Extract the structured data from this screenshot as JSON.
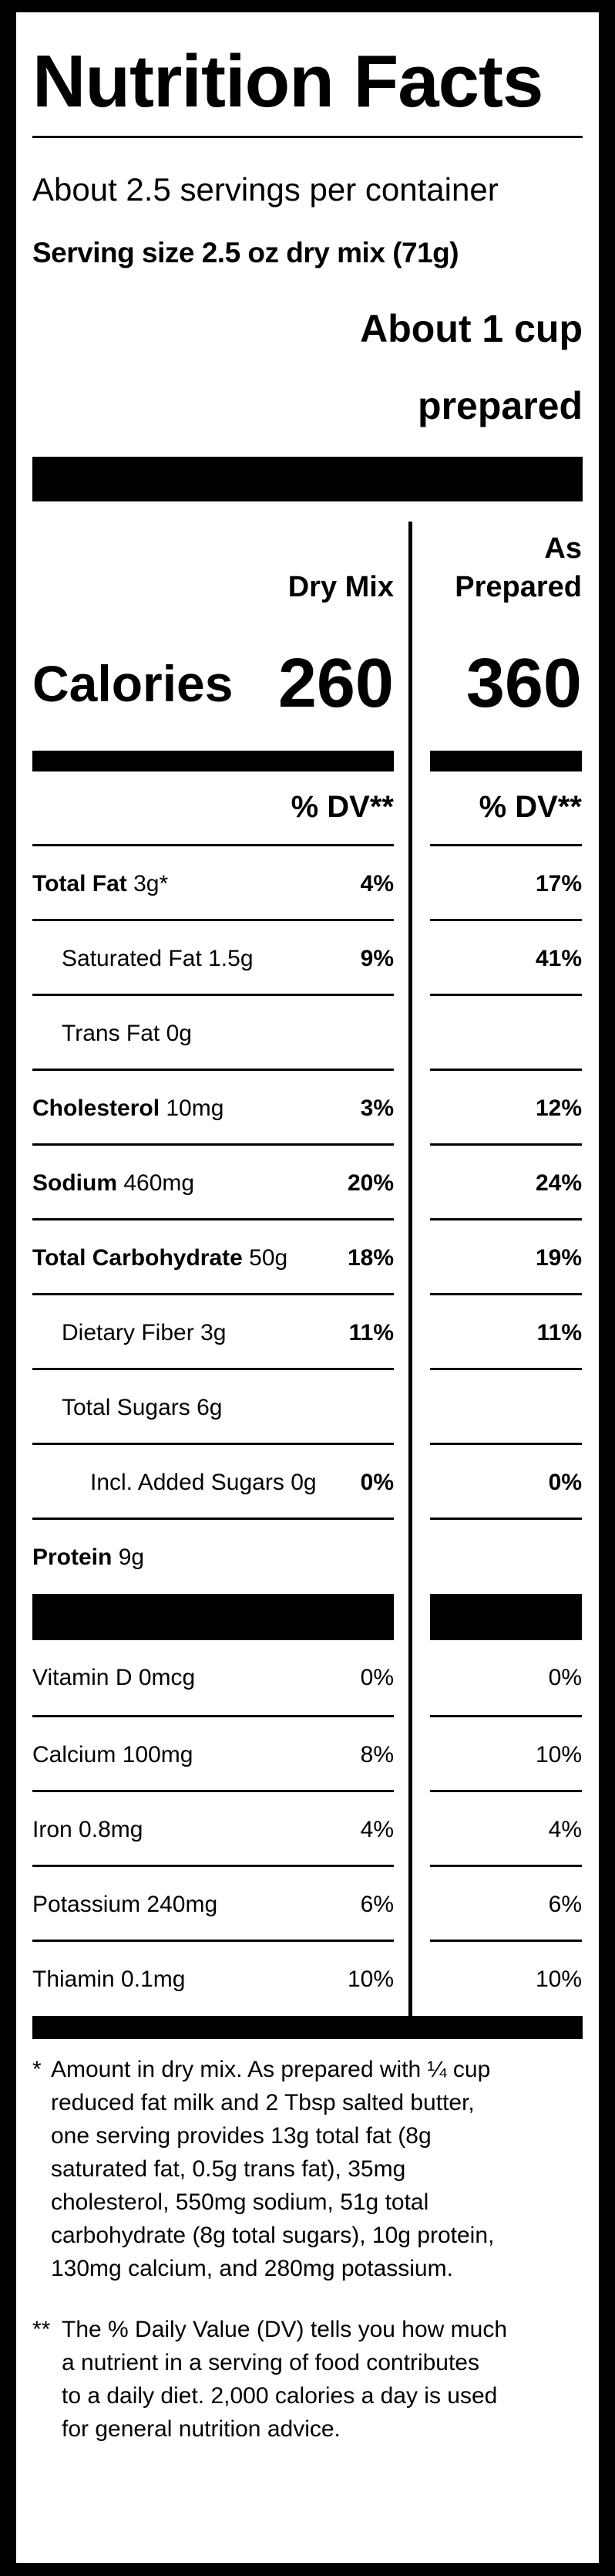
{
  "title": "Nutrition Facts",
  "servings_per_container": "About 2.5 servings per container",
  "serving_size": "Serving size  2.5 oz dry mix (71g)",
  "serving_size_prepared_line1": "About 1 cup",
  "serving_size_prepared_line2": "prepared",
  "columns": {
    "dry_mix": "Dry Mix",
    "as_prepared_line1": "As",
    "as_prepared_line2": "Prepared"
  },
  "calories": {
    "label": "Calories",
    "dry_mix": "260",
    "as_prepared": "360"
  },
  "dv_header": "% DV**",
  "nutrients": [
    {
      "name": "Total Fat",
      "amount": "3g*",
      "dv_dry": "4%",
      "dv_prepared": "17%",
      "bold": true,
      "indent": 0
    },
    {
      "name": "Saturated Fat",
      "amount": "1.5g",
      "dv_dry": "9%",
      "dv_prepared": "41%",
      "bold": false,
      "indent": 1
    },
    {
      "name": "Trans Fat",
      "amount": "0g",
      "dv_dry": "",
      "dv_prepared": "",
      "bold": false,
      "indent": 1
    },
    {
      "name": "Cholesterol",
      "amount": "10mg",
      "dv_dry": "3%",
      "dv_prepared": "12%",
      "bold": true,
      "indent": 0
    },
    {
      "name": "Sodium",
      "amount": "460mg",
      "dv_dry": "20%",
      "dv_prepared": "24%",
      "bold": true,
      "indent": 0
    },
    {
      "name": "Total Carbohydrate",
      "amount": "50g",
      "dv_dry": "18%",
      "dv_prepared": "19%",
      "bold": true,
      "indent": 0
    },
    {
      "name": "Dietary Fiber",
      "amount": "3g",
      "dv_dry": "11%",
      "dv_prepared": "11%",
      "bold": false,
      "indent": 1
    },
    {
      "name": "Total Sugars",
      "amount": "6g",
      "dv_dry": "",
      "dv_prepared": "",
      "bold": false,
      "indent": 1
    },
    {
      "name": "Incl. Added Sugars",
      "amount": "0g",
      "dv_dry": "0%",
      "dv_prepared": "0%",
      "bold": false,
      "indent": 2
    },
    {
      "name": "Protein",
      "amount": "9g",
      "dv_dry": "",
      "dv_prepared": "",
      "bold": true,
      "indent": 0
    }
  ],
  "vitamins": [
    {
      "name": "Vitamin D",
      "amount": "0mcg",
      "dv_dry": "0%",
      "dv_prepared": "0%"
    },
    {
      "name": "Calcium",
      "amount": "100mg",
      "dv_dry": "8%",
      "dv_prepared": "10%"
    },
    {
      "name": "Iron",
      "amount": "0.8mg",
      "dv_dry": "4%",
      "dv_prepared": "4%"
    },
    {
      "name": "Potassium",
      "amount": "240mg",
      "dv_dry": "6%",
      "dv_prepared": "6%"
    },
    {
      "name": "Thiamin",
      "amount": "0.1mg",
      "dv_dry": "10%",
      "dv_prepared": "10%"
    }
  ],
  "footnotes": [
    {
      "mark": "*",
      "lines": [
        "Amount in dry mix. As prepared with ¼ cup",
        "reduced fat milk and 2 Tbsp salted butter,",
        "one serving provides 13g total fat (8g",
        "saturated fat, 0.5g trans fat), 35mg",
        "cholesterol, 550mg sodium, 51g total",
        "carbohydrate (8g total sugars), 10g protein,",
        "130mg calcium, and 280mg potassium."
      ]
    },
    {
      "mark": "**",
      "lines": [
        "The % Daily Value (DV) tells you how much",
        "a nutrient in a serving of food contributes",
        "to a daily diet. 2,000 calories a day is used",
        "for general nutrition advice."
      ]
    }
  ]
}
